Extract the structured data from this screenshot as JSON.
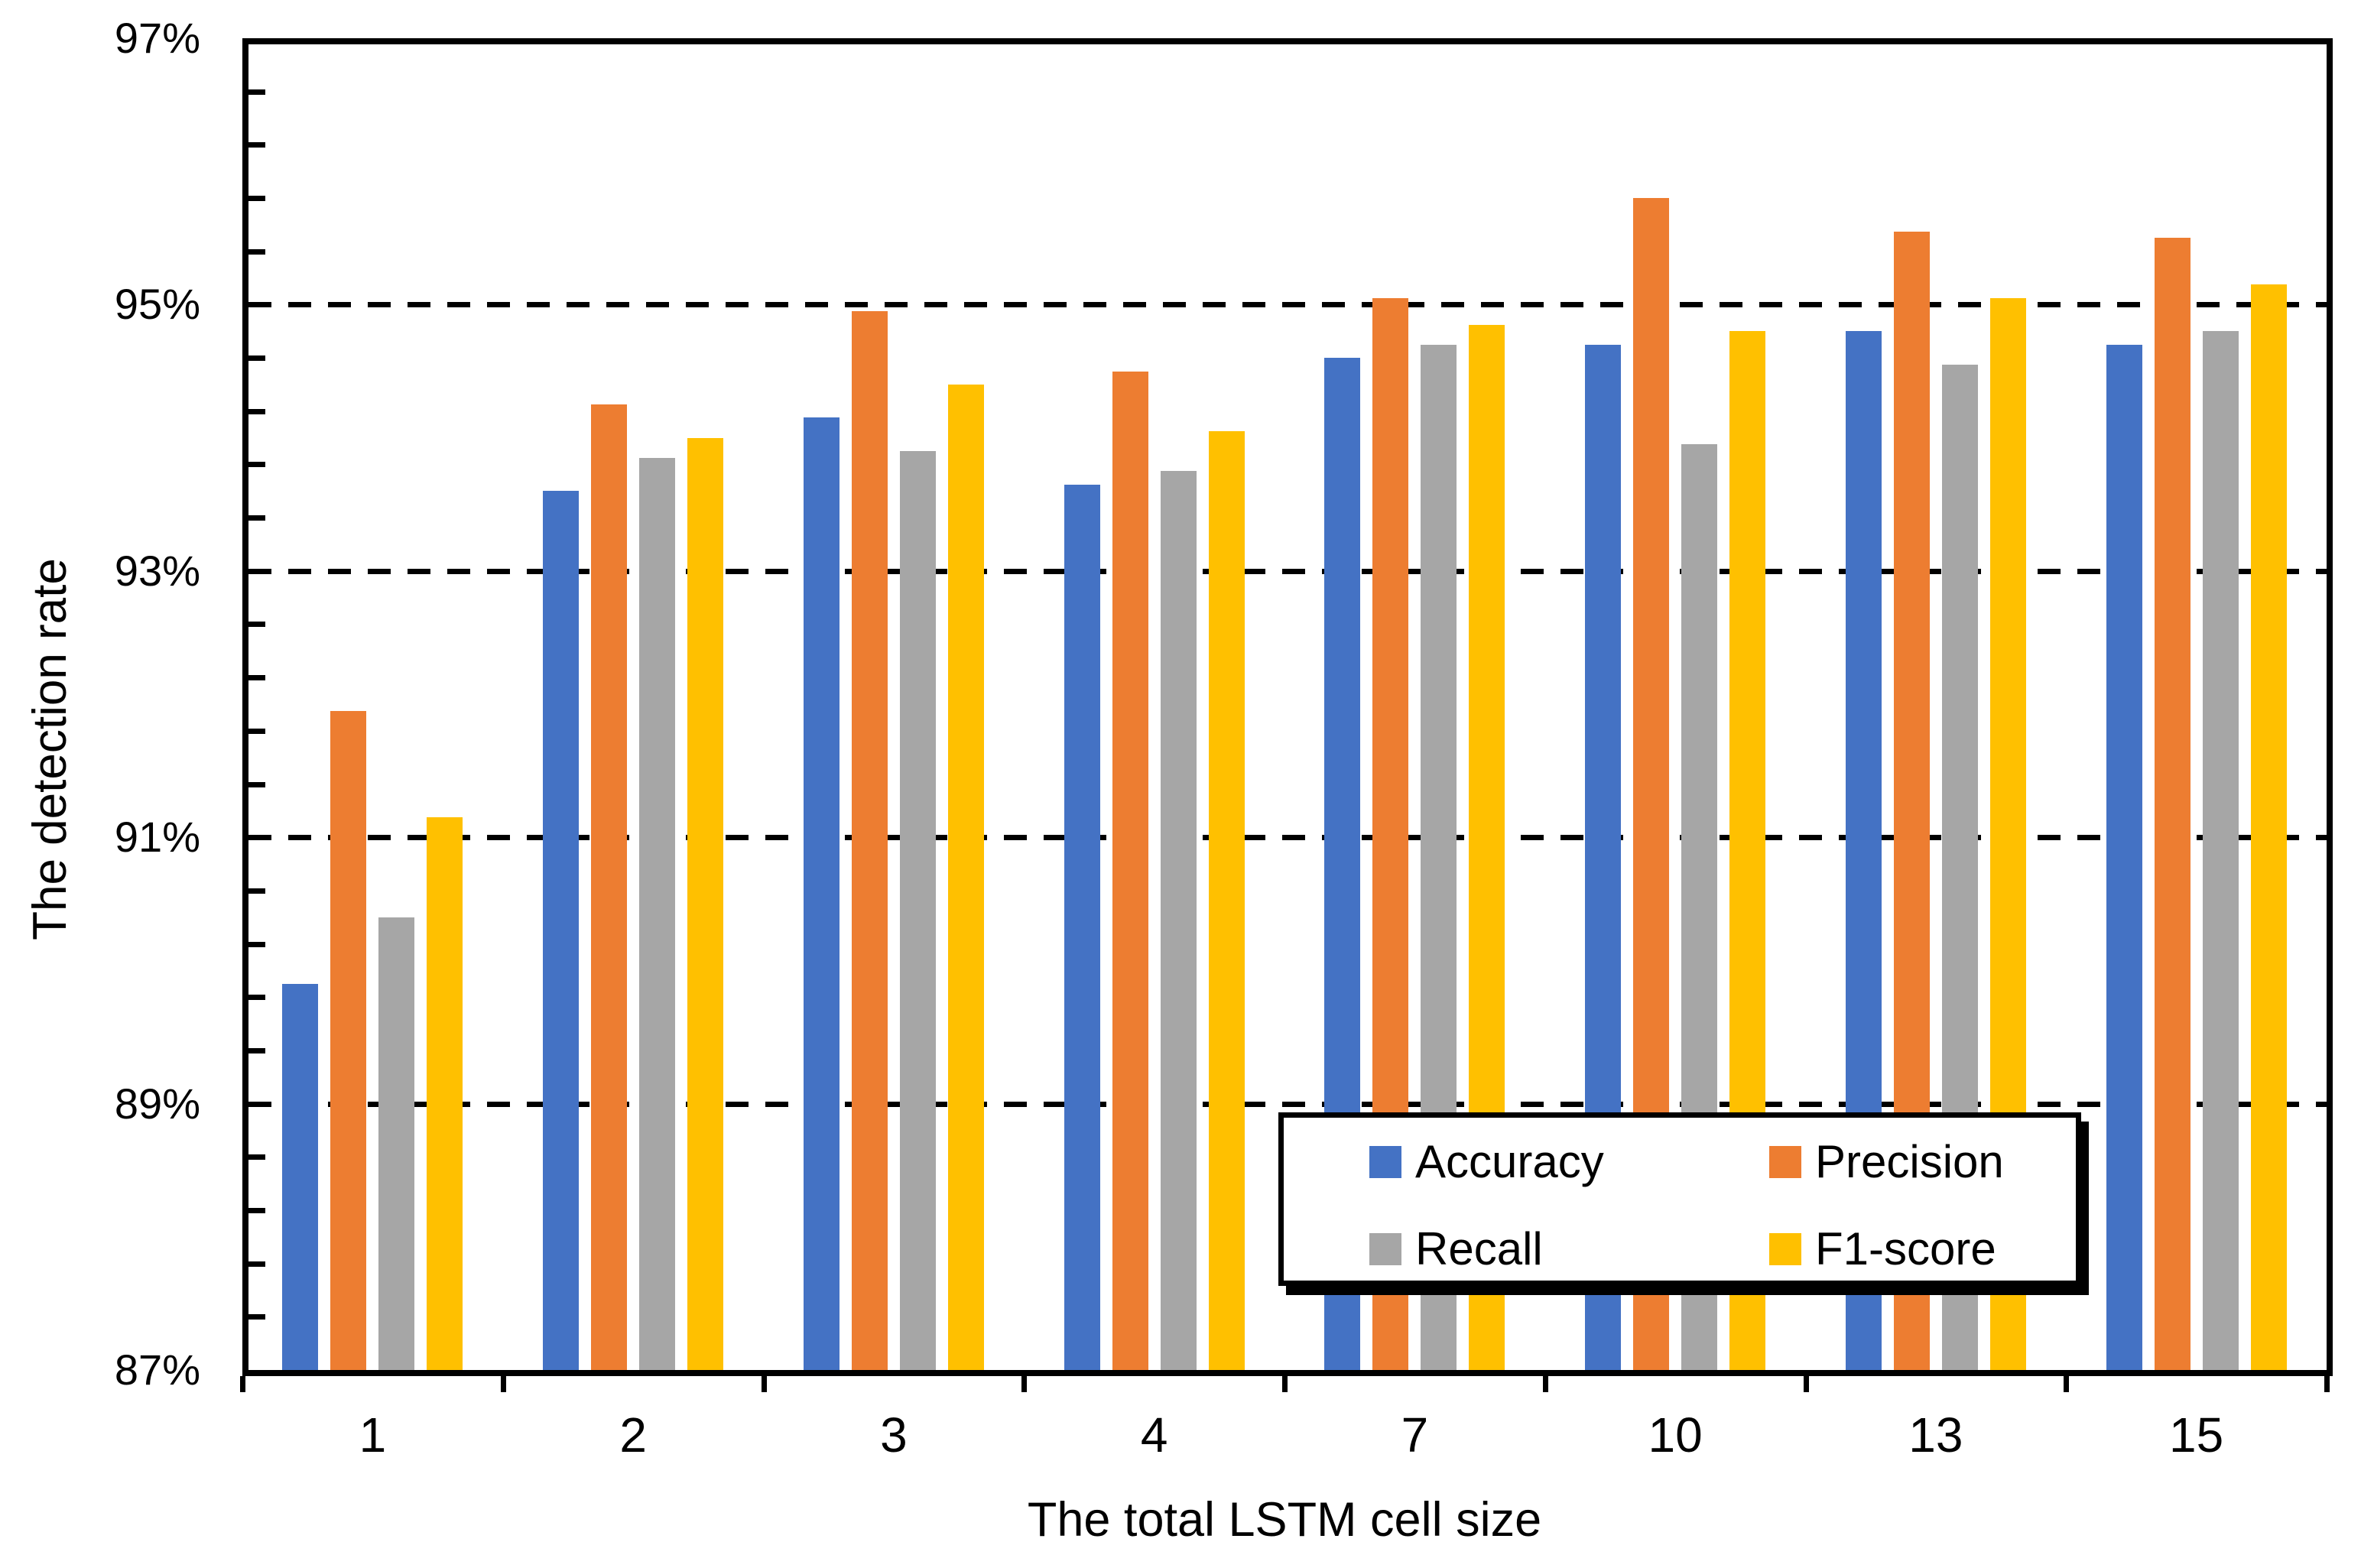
{
  "chart_data": {
    "type": "bar",
    "title": "",
    "xlabel": "The total LSTM cell size",
    "ylabel": "The detection rate",
    "categories": [
      "1",
      "2",
      "3",
      "4",
      "7",
      "10",
      "13",
      "15"
    ],
    "series": [
      {
        "name": "Accuracy",
        "color": "#4472C4",
        "values": [
          89.9,
          93.6,
          94.15,
          93.65,
          94.6,
          94.7,
          94.8,
          94.7
        ]
      },
      {
        "name": "Precision",
        "color": "#ED7D31",
        "values": [
          91.95,
          94.25,
          94.95,
          94.5,
          95.05,
          95.8,
          95.55,
          95.5
        ]
      },
      {
        "name": "Recall",
        "color": "#A6A6A6",
        "values": [
          90.4,
          93.85,
          93.9,
          93.75,
          94.7,
          93.95,
          94.55,
          94.8
        ]
      },
      {
        "name": "F1-score",
        "color": "#FFC000",
        "values": [
          91.15,
          94.0,
          94.4,
          94.05,
          94.85,
          94.8,
          95.05,
          95.15
        ]
      }
    ],
    "y_axis": {
      "min": 87,
      "max": 97,
      "major_step": 2,
      "minor_tick_step": 0.4,
      "tick_labels": [
        "87%",
        "89%",
        "91%",
        "93%",
        "95%",
        "97%"
      ],
      "gridlines_at": [
        89,
        91,
        93,
        95
      ],
      "grid_style": "dashed"
    },
    "legend": {
      "position": "inside-bottom-right",
      "entries": [
        "Accuracy",
        "Precision",
        "Recall",
        "F1-score"
      ]
    },
    "axis_color": "#000000",
    "background_color": "#ffffff"
  }
}
